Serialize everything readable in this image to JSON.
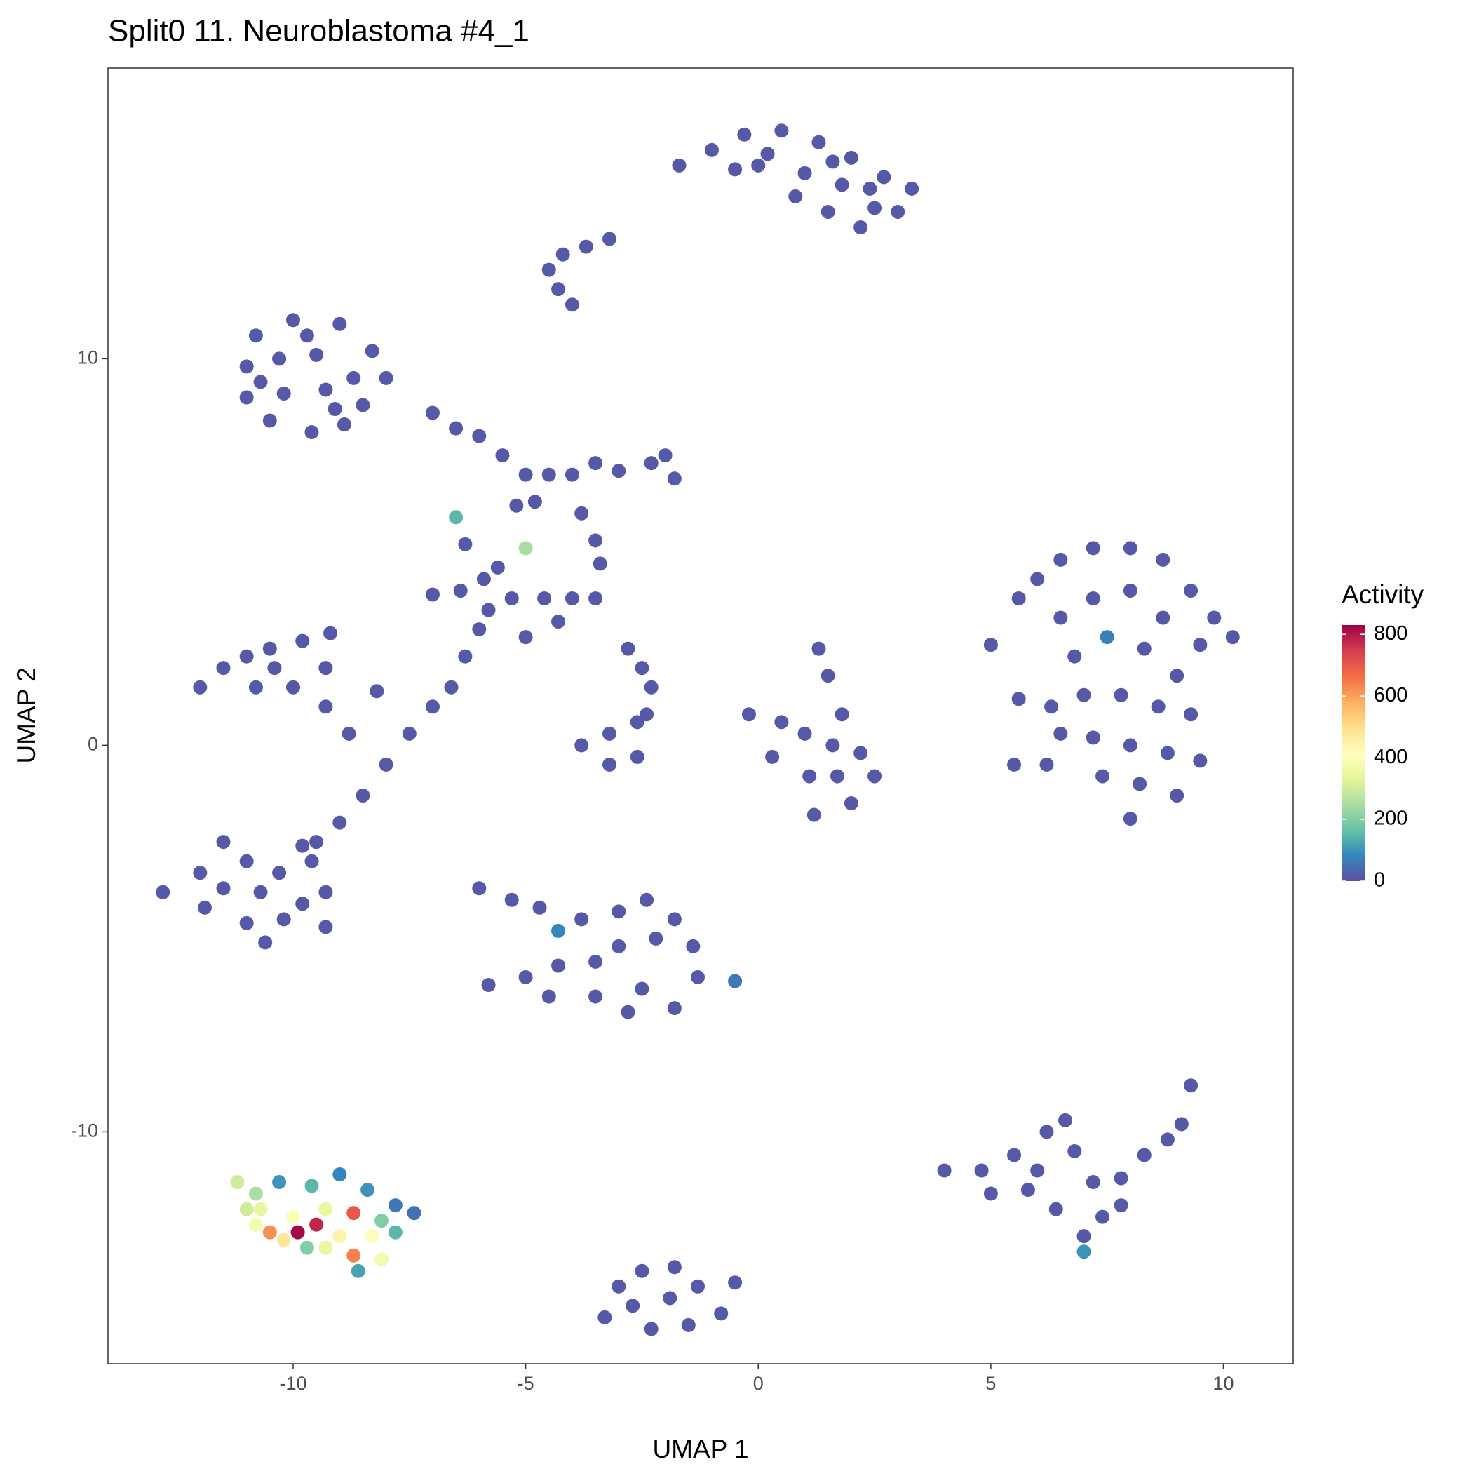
{
  "chart_data": {
    "type": "scatter",
    "title": "Split0 11. Neuroblastoma #4_1",
    "x_label": "UMAP 1",
    "y_label": "UMAP 2",
    "xlim": [
      -13.98,
      11.5
    ],
    "ylim": [
      -16.0,
      17.52
    ],
    "xticks": [
      -10,
      -5,
      0,
      5,
      10
    ],
    "yticks": [
      -10,
      0,
      10
    ],
    "grid": false,
    "color_label": "Activity",
    "clim": [
      0,
      830
    ],
    "cticks": [
      0,
      200,
      400,
      600,
      800
    ],
    "colorscale": [
      "#5E4FA2",
      "#3288BD",
      "#66C2A5",
      "#ABDDA4",
      "#E6F598",
      "#FFFFBF",
      "#FEE08B",
      "#FDAE61",
      "#F46D43",
      "#D53E4F",
      "#9E0142"
    ],
    "points": [
      [
        -1.7,
        15.0,
        15
      ],
      [
        -1,
        15.4,
        15
      ],
      [
        -0.3,
        15.8,
        15
      ],
      [
        0.5,
        15.9,
        15
      ],
      [
        1.3,
        15.6,
        15
      ],
      [
        2,
        15.2,
        15
      ],
      [
        2.7,
        14.7,
        15
      ],
      [
        3.3,
        14.4,
        15
      ],
      [
        0,
        15.0,
        15
      ],
      [
        1,
        14.8,
        15
      ],
      [
        1.8,
        14.5,
        15
      ],
      [
        2.5,
        13.9,
        15
      ],
      [
        1.5,
        13.8,
        15
      ],
      [
        0.8,
        14.2,
        15
      ],
      [
        -0.5,
        14.9,
        15
      ],
      [
        3,
        13.8,
        15
      ],
      [
        2.2,
        13.4,
        15
      ],
      [
        0.2,
        15.3,
        15
      ],
      [
        1.6,
        15.1,
        15
      ],
      [
        2.4,
        14.4,
        15
      ],
      [
        -4.5,
        12.3,
        15
      ],
      [
        -4.2,
        12.7,
        15
      ],
      [
        -3.7,
        12.9,
        15
      ],
      [
        -3.2,
        13.1,
        15
      ],
      [
        -4.3,
        11.8,
        15
      ],
      [
        -4,
        11.4,
        15
      ],
      [
        -10.8,
        10.6,
        15
      ],
      [
        -10,
        11,
        15
      ],
      [
        -9,
        10.9,
        15
      ],
      [
        -8.3,
        10.2,
        15
      ],
      [
        -11,
        9.8,
        15
      ],
      [
        -10.3,
        10,
        15
      ],
      [
        -9.5,
        10.1,
        15
      ],
      [
        -8.7,
        9.5,
        15
      ],
      [
        -11,
        9,
        15
      ],
      [
        -10.2,
        9.1,
        15
      ],
      [
        -9.3,
        9.2,
        15
      ],
      [
        -8.5,
        8.8,
        15
      ],
      [
        -10.5,
        8.4,
        15
      ],
      [
        -9.6,
        8.1,
        15
      ],
      [
        -8.9,
        8.3,
        15
      ],
      [
        -8,
        9.5,
        15
      ],
      [
        -9.7,
        10.6,
        15
      ],
      [
        -10.7,
        9.4,
        15
      ],
      [
        -9.1,
        8.7,
        15
      ],
      [
        -7,
        8.6,
        15
      ],
      [
        -6.5,
        8.2,
        15
      ],
      [
        -6,
        8,
        15
      ],
      [
        -5.5,
        7.5,
        15
      ],
      [
        -5,
        7,
        15
      ],
      [
        -4.5,
        7,
        15
      ],
      [
        -4,
        7,
        15
      ],
      [
        -3.5,
        7.3,
        15
      ],
      [
        -3,
        7.1,
        15
      ],
      [
        -2.3,
        7.3,
        15
      ],
      [
        -2,
        7.5,
        15
      ],
      [
        -1.8,
        6.9,
        15
      ],
      [
        -5.2,
        6.2,
        15
      ],
      [
        -4.8,
        6.3,
        15
      ],
      [
        -6.3,
        5.2,
        15
      ],
      [
        -3.8,
        6,
        15
      ],
      [
        -3.5,
        5.3,
        15
      ],
      [
        -3.4,
        4.7,
        15
      ],
      [
        -7,
        3.9,
        15
      ],
      [
        -6.4,
        4,
        15
      ],
      [
        -5.9,
        4.3,
        15
      ],
      [
        -5.6,
        4.6,
        15
      ],
      [
        -5.3,
        3.8,
        15
      ],
      [
        -4.6,
        3.8,
        15
      ],
      [
        -4,
        3.8,
        15
      ],
      [
        -3.5,
        3.8,
        15
      ],
      [
        -4.3,
        3.2,
        15
      ],
      [
        -5,
        2.8,
        15
      ],
      [
        -5.8,
        3.5,
        15
      ],
      [
        -6,
        3,
        15
      ],
      [
        -6.3,
        2.3,
        15
      ],
      [
        -6.6,
        1.5,
        15
      ],
      [
        -7,
        1,
        15
      ],
      [
        -7.5,
        0.3,
        15
      ],
      [
        -8,
        -0.5,
        15
      ],
      [
        -8.5,
        -1.3,
        15
      ],
      [
        -9,
        -2,
        15
      ],
      [
        -9.5,
        -2.5,
        15
      ],
      [
        -2.8,
        2.5,
        15
      ],
      [
        -2.5,
        2,
        15
      ],
      [
        -2.3,
        1.5,
        15
      ],
      [
        -2.4,
        0.8,
        15
      ],
      [
        -3.2,
        0.3,
        15
      ],
      [
        -3.8,
        0,
        15
      ],
      [
        -3.2,
        -0.5,
        15
      ],
      [
        -2.6,
        -0.3,
        15
      ],
      [
        -2.6,
        0.6,
        15
      ],
      [
        -6.5,
        5.9,
        150
      ],
      [
        -5,
        5.1,
        250
      ],
      [
        -12,
        1.5,
        15
      ],
      [
        -11.5,
        2,
        15
      ],
      [
        -11,
        2.3,
        15
      ],
      [
        -10.5,
        2.5,
        15
      ],
      [
        -9.8,
        2.7,
        15
      ],
      [
        -9.2,
        2.9,
        15
      ],
      [
        -9.3,
        2,
        15
      ],
      [
        -10,
        1.5,
        15
      ],
      [
        -10.8,
        1.5,
        15
      ],
      [
        -9.3,
        1,
        15
      ],
      [
        -8.8,
        0.3,
        15
      ],
      [
        -8.2,
        1.4,
        15
      ],
      [
        -10.4,
        2,
        15
      ],
      [
        -12.8,
        -3.8,
        15
      ],
      [
        -12,
        -3.3,
        15
      ],
      [
        -11.5,
        -2.5,
        15
      ],
      [
        -11,
        -3,
        15
      ],
      [
        -10.3,
        -3.3,
        15
      ],
      [
        -9.6,
        -3,
        15
      ],
      [
        -9.3,
        -3.8,
        15
      ],
      [
        -9.3,
        -4.7,
        15
      ],
      [
        -10.2,
        -4.5,
        15
      ],
      [
        -11,
        -4.6,
        15
      ],
      [
        -11.9,
        -4.2,
        15
      ],
      [
        -10.7,
        -3.8,
        15
      ],
      [
        -9.8,
        -2.6,
        15
      ],
      [
        -10.6,
        -5.1,
        15
      ],
      [
        -11.5,
        -3.7,
        15
      ],
      [
        -9.8,
        -4.1,
        15
      ],
      [
        -0.2,
        0.8,
        15
      ],
      [
        0.5,
        0.6,
        15
      ],
      [
        1,
        0.3,
        15
      ],
      [
        1.8,
        0.8,
        15
      ],
      [
        1.6,
        0,
        15
      ],
      [
        2.2,
        -0.2,
        15
      ],
      [
        2.5,
        -0.8,
        15
      ],
      [
        2,
        -1.5,
        15
      ],
      [
        1.2,
        -1.8,
        15
      ],
      [
        1.1,
        -0.8,
        15
      ],
      [
        1.3,
        2.5,
        15
      ],
      [
        1.5,
        1.8,
        15
      ],
      [
        0.3,
        -0.3,
        15
      ],
      [
        1.7,
        -0.8,
        15
      ],
      [
        5,
        2.6,
        15
      ],
      [
        5.6,
        3.8,
        15
      ],
      [
        6,
        4.3,
        15
      ],
      [
        6.5,
        4.8,
        15
      ],
      [
        7.2,
        5.1,
        15
      ],
      [
        8,
        5.1,
        15
      ],
      [
        8.7,
        4.8,
        15
      ],
      [
        9.3,
        4,
        15
      ],
      [
        9.8,
        3.3,
        15
      ],
      [
        10.2,
        2.8,
        15
      ],
      [
        6.5,
        3.3,
        15
      ],
      [
        7.2,
        3.8,
        15
      ],
      [
        8,
        4,
        15
      ],
      [
        8.7,
        3.3,
        15
      ],
      [
        9.5,
        2.6,
        15
      ],
      [
        6.8,
        2.3,
        15
      ],
      [
        8.3,
        2.5,
        15
      ],
      [
        9,
        1.8,
        15
      ],
      [
        5.6,
        1.2,
        15
      ],
      [
        6.3,
        1,
        15
      ],
      [
        7,
        1.3,
        15
      ],
      [
        7.8,
        1.3,
        15
      ],
      [
        8.6,
        1,
        15
      ],
      [
        9.3,
        0.8,
        15
      ],
      [
        7.2,
        0.2,
        15
      ],
      [
        8,
        0,
        15
      ],
      [
        8.8,
        -0.2,
        15
      ],
      [
        9.5,
        -0.4,
        15
      ],
      [
        7.4,
        -0.8,
        15
      ],
      [
        8.2,
        -1,
        15
      ],
      [
        9,
        -1.3,
        15
      ],
      [
        8,
        -1.9,
        15
      ],
      [
        5.5,
        -0.5,
        15
      ],
      [
        6.2,
        -0.5,
        15
      ],
      [
        6.5,
        0.3,
        15
      ],
      [
        7.5,
        2.8,
        70
      ],
      [
        -6,
        -3.7,
        15
      ],
      [
        -5.3,
        -4,
        15
      ],
      [
        -4.7,
        -4.2,
        15
      ],
      [
        -3.8,
        -4.5,
        15
      ],
      [
        -3,
        -4.3,
        15
      ],
      [
        -2.4,
        -4,
        15
      ],
      [
        -1.8,
        -4.5,
        15
      ],
      [
        -1.4,
        -5.2,
        15
      ],
      [
        -1.3,
        -6,
        15
      ],
      [
        -2.2,
        -5,
        15
      ],
      [
        -3,
        -5.2,
        15
      ],
      [
        -3.5,
        -5.6,
        15
      ],
      [
        -4.3,
        -5.7,
        15
      ],
      [
        -5,
        -6,
        15
      ],
      [
        -5.8,
        -6.2,
        15
      ],
      [
        -4.5,
        -6.5,
        15
      ],
      [
        -3.5,
        -6.5,
        15
      ],
      [
        -2.5,
        -6.3,
        15
      ],
      [
        -1.8,
        -6.8,
        15
      ],
      [
        -2.8,
        -6.9,
        15
      ],
      [
        -4.3,
        -4.8,
        80
      ],
      [
        -0.5,
        -6.1,
        60
      ],
      [
        4,
        -11,
        15
      ],
      [
        4.8,
        -11,
        15
      ],
      [
        5.5,
        -10.6,
        15
      ],
      [
        6.2,
        -10,
        15
      ],
      [
        6.6,
        -9.7,
        15
      ],
      [
        6.8,
        -10.5,
        15
      ],
      [
        7.2,
        -11.3,
        15
      ],
      [
        7.4,
        -12.2,
        15
      ],
      [
        7,
        -12.7,
        15
      ],
      [
        6.4,
        -12,
        15
      ],
      [
        5.8,
        -11.5,
        15
      ],
      [
        5,
        -11.6,
        15
      ],
      [
        6,
        -11,
        15
      ],
      [
        7.8,
        -11.2,
        15
      ],
      [
        8.3,
        -10.6,
        15
      ],
      [
        8.8,
        -10.2,
        15
      ],
      [
        9.1,
        -9.8,
        15
      ],
      [
        9.3,
        -8.8,
        15
      ],
      [
        7.8,
        -11.9,
        15
      ],
      [
        7,
        -13.1,
        100
      ],
      [
        -3.3,
        -14.8,
        15
      ],
      [
        -3,
        -14,
        15
      ],
      [
        -2.5,
        -13.6,
        15
      ],
      [
        -1.8,
        -13.5,
        15
      ],
      [
        -1.3,
        -14,
        15
      ],
      [
        -0.8,
        -14.7,
        15
      ],
      [
        -1.5,
        -15,
        15
      ],
      [
        -2.3,
        -15.1,
        15
      ],
      [
        -2.7,
        -14.5,
        15
      ],
      [
        -1.9,
        -14.3,
        15
      ],
      [
        -0.5,
        -13.9,
        15
      ],
      [
        -11.2,
        -11.3,
        300
      ],
      [
        -10.8,
        -11.6,
        250
      ],
      [
        -10.3,
        -11.3,
        100
      ],
      [
        -9.6,
        -11.4,
        150
      ],
      [
        -9,
        -11.1,
        80
      ],
      [
        -8.4,
        -11.5,
        100
      ],
      [
        -7.8,
        -11.9,
        60
      ],
      [
        -7.4,
        -12.1,
        50
      ],
      [
        -7.8,
        -12.6,
        150
      ],
      [
        -8.6,
        -13.6,
        120
      ],
      [
        -9.7,
        -13,
        200
      ],
      [
        -8.1,
        -12.3,
        200
      ],
      [
        -10.7,
        -12,
        350
      ],
      [
        -10,
        -12.2,
        400
      ],
      [
        -9.3,
        -12,
        350
      ],
      [
        -9.3,
        -13,
        350
      ],
      [
        -8.1,
        -13.3,
        380
      ],
      [
        -10.8,
        -12.4,
        380
      ],
      [
        -11,
        -12,
        300
      ],
      [
        -9,
        -12.7,
        450
      ],
      [
        -8.3,
        -12.7,
        420
      ],
      [
        -10.2,
        -12.8,
        480
      ],
      [
        -10.5,
        -12.6,
        620
      ],
      [
        -8.7,
        -13.2,
        640
      ],
      [
        -8.7,
        -12.1,
        700
      ],
      [
        -9.5,
        -12.4,
        780
      ],
      [
        -9.9,
        -12.6,
        820
      ]
    ]
  }
}
